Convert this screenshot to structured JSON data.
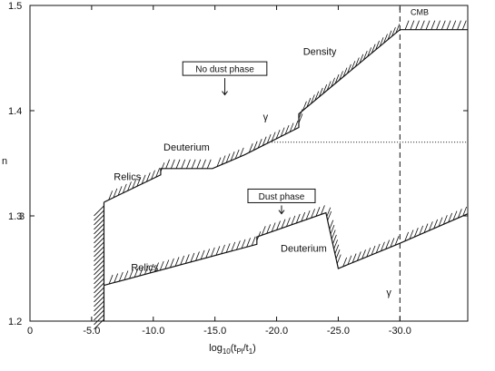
{
  "chart_data": {
    "type": "line",
    "title": "",
    "xlabel": "log10(tPl/t1)",
    "xlabel_main": "log",
    "xlabel_sub": "10",
    "xlabel_rest": "(t",
    "xlabel_sub2": "Pl",
    "xlabel_rest2": "/t",
    "xlabel_sub3": "1",
    "xlabel_end": ")",
    "ylabel": "n",
    "xlim": [
      0,
      -35.5
    ],
    "ylim": [
      1.2,
      1.5
    ],
    "x_ticks": [
      0,
      -5,
      -10,
      -15,
      -20,
      -25,
      -30
    ],
    "x_tick_labels": [
      "0",
      "-5.0",
      "-10.0",
      "-15.0",
      "-20.0",
      "-25.0",
      "-30.0"
    ],
    "y_ticks": [
      1.2,
      1.3,
      1.4,
      1.5
    ],
    "y_tick_labels": [
      "1.2",
      "1.3",
      "1.4",
      "1.5"
    ],
    "grid": false,
    "series": [
      {
        "key": "no-dust",
        "x": [
          -6,
          -10.6,
          -10.6,
          -14.8,
          -17.4,
          -21.8,
          -21.8,
          -30,
          -35.5
        ],
        "y": [
          1.313,
          1.339,
          1.345,
          1.345,
          1.358,
          1.384,
          1.397,
          1.477,
          1.477
        ]
      },
      {
        "key": "dust",
        "x": [
          -6,
          -18.4,
          -18.4,
          -24,
          -24.2,
          -25,
          -30,
          -35.5
        ],
        "y": [
          1.234,
          1.273,
          1.28,
          1.303,
          1.292,
          1.25,
          1.274,
          1.302
        ]
      }
    ],
    "reference_lines": [
      {
        "key": "cmb-line",
        "orientation": "vertical",
        "x": -30,
        "y_range": [
          1.2,
          1.5
        ],
        "style": "dashed"
      },
      {
        "key": "dotted-level",
        "orientation": "horizontal",
        "y": 1.37,
        "x_range": [
          -19.6,
          -35.5
        ],
        "style": "dotted"
      },
      {
        "key": "relics-wall",
        "orientation": "vertical",
        "x": -6,
        "y_range": [
          1.2,
          1.313
        ],
        "style": "solid"
      }
    ],
    "annotations": [
      {
        "key": "label-density",
        "text": "Density",
        "x": -23.5,
        "y": 1.453
      },
      {
        "key": "label-cmb",
        "text": "CMB",
        "x": -31.6,
        "y": 1.491
      },
      {
        "key": "label-deuterium-upper",
        "text": "Deuterium",
        "x": -12.7,
        "y": 1.362
      },
      {
        "key": "label-relics-upper",
        "text": "Relics",
        "x": -7.9,
        "y": 1.334
      },
      {
        "key": "label-gamma-upper",
        "text": "γ",
        "x": -19.1,
        "y": 1.391
      },
      {
        "key": "label-relics-lower",
        "text": "Relics",
        "x": -9.3,
        "y": 1.248
      },
      {
        "key": "label-deuterium-lower",
        "text": "Deuterium",
        "x": -22.2,
        "y": 1.266
      },
      {
        "key": "label-gamma-lower",
        "text": "γ",
        "x": -29.1,
        "y": 1.224
      }
    ],
    "boxed_annotations": [
      {
        "key": "box-no-dust-phase",
        "text": "No dust phase",
        "x": -15.8,
        "y": 1.44,
        "arrow_to_y": 1.415
      },
      {
        "key": "box-dust-phase",
        "text": "Dust phase",
        "x": -20.4,
        "y": 1.319,
        "arrow_to_y": 1.302
      }
    ],
    "colors": {
      "ink": "#111111",
      "background": "#ffffff"
    }
  },
  "stray_marks": {
    "y_label_overprint": "3"
  }
}
